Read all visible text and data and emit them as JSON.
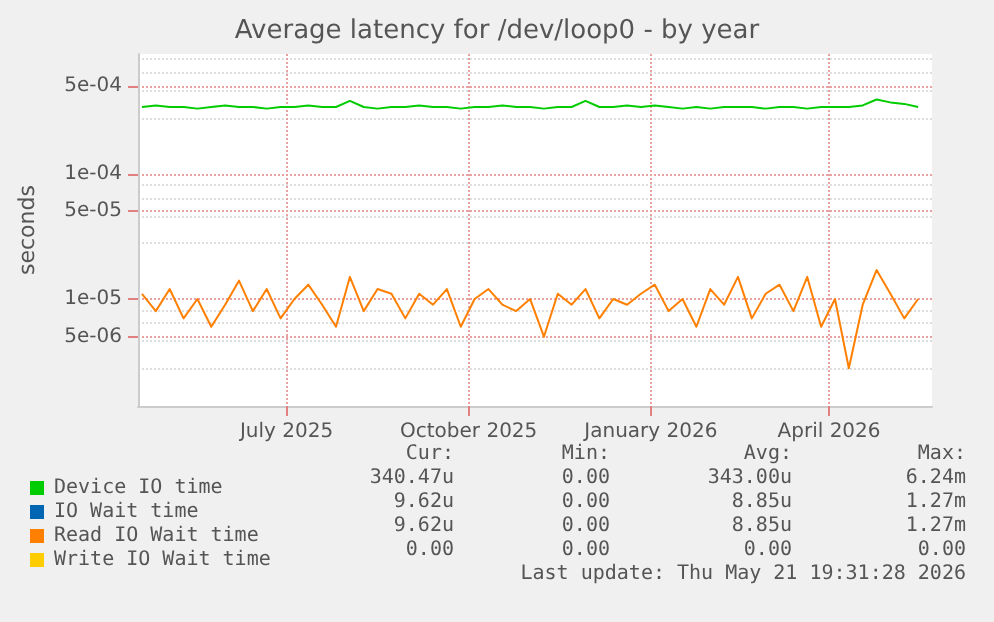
{
  "chart_data": {
    "type": "line",
    "title": "Average latency for /dev/loop0 - by year",
    "ylabel": "seconds",
    "log": "y",
    "grid": true,
    "legend": "bottom left",
    "marker": "none",
    "line_style": "solid",
    "xlim": [
      "2025-04-17",
      "2026-05-23"
    ],
    "xticks": [
      {
        "value": "2025-07-01",
        "label": "July 2025"
      },
      {
        "value": "2025-10-01",
        "label": "October 2025"
      },
      {
        "value": "2026-01-01",
        "label": "January 2026"
      },
      {
        "value": "2026-04-01",
        "label": "April 2026"
      }
    ],
    "ylim": [
      1.4e-06,
      0.0009
    ],
    "yticks": [
      {
        "value": 5e-06,
        "label": "5e-06"
      },
      {
        "value": 1e-05,
        "label": "1e-05"
      },
      {
        "value": 5e-05,
        "label": "5e-05"
      },
      {
        "value": 0.0001,
        "label": "1e-04"
      },
      {
        "value": 0.0005,
        "label": "5e-04"
      }
    ],
    "x": [
      "2025-04-19",
      "2025-04-26",
      "2025-05-03",
      "2025-05-10",
      "2025-05-17",
      "2025-05-24",
      "2025-05-31",
      "2025-06-07",
      "2025-06-14",
      "2025-06-21",
      "2025-06-28",
      "2025-07-05",
      "2025-07-12",
      "2025-07-19",
      "2025-07-26",
      "2025-08-02",
      "2025-08-09",
      "2025-08-16",
      "2025-08-23",
      "2025-08-30",
      "2025-09-06",
      "2025-09-13",
      "2025-09-20",
      "2025-09-27",
      "2025-10-04",
      "2025-10-11",
      "2025-10-18",
      "2025-10-25",
      "2025-11-01",
      "2025-11-08",
      "2025-11-15",
      "2025-11-22",
      "2025-11-29",
      "2025-12-06",
      "2025-12-13",
      "2025-12-20",
      "2025-12-27",
      "2026-01-03",
      "2026-01-10",
      "2026-01-17",
      "2026-01-24",
      "2026-01-31",
      "2026-02-07",
      "2026-02-14",
      "2026-02-21",
      "2026-02-28",
      "2026-03-07",
      "2026-03-14",
      "2026-03-21",
      "2026-03-28",
      "2026-04-04",
      "2026-04-11",
      "2026-04-18",
      "2026-04-25",
      "2026-05-02",
      "2026-05-09",
      "2026-05-16"
    ],
    "series": [
      {
        "name": "Device IO time",
        "color": "#00cc00",
        "values": [
          0.00034,
          0.00035,
          0.00034,
          0.00034,
          0.00033,
          0.00034,
          0.00035,
          0.00034,
          0.00034,
          0.00033,
          0.00034,
          0.00034,
          0.00035,
          0.00034,
          0.00034,
          0.00038,
          0.00034,
          0.00033,
          0.00034,
          0.00034,
          0.00035,
          0.00034,
          0.00034,
          0.00033,
          0.00034,
          0.00034,
          0.00035,
          0.00034,
          0.00034,
          0.00033,
          0.00034,
          0.00034,
          0.00038,
          0.00034,
          0.00034,
          0.00035,
          0.00034,
          0.00035,
          0.00034,
          0.00033,
          0.00034,
          0.00033,
          0.00034,
          0.00034,
          0.00034,
          0.00033,
          0.00034,
          0.00034,
          0.00033,
          0.00034,
          0.00034,
          0.00034,
          0.00035,
          0.00039,
          0.00037,
          0.00036,
          0.00034
        ]
      },
      {
        "name": "IO Wait time",
        "color": "#0066b3",
        "values": [
          null,
          null,
          null,
          null,
          null,
          null,
          null,
          null,
          null,
          null,
          null,
          null,
          null,
          null,
          null,
          null,
          null,
          null,
          null,
          null,
          null,
          null,
          null,
          null,
          null,
          null,
          null,
          null,
          null,
          null,
          null,
          null,
          null,
          null,
          null,
          null,
          null,
          null,
          null,
          null,
          null,
          null,
          null,
          null,
          null,
          null,
          null,
          null,
          null,
          null,
          null,
          null,
          null,
          null,
          null,
          null,
          null
        ]
      },
      {
        "name": "Read IO Wait time",
        "color": "#ff8000",
        "values": [
          1.1e-05,
          8e-06,
          1.2e-05,
          7e-06,
          1e-05,
          6e-06,
          9e-06,
          1.4e-05,
          8e-06,
          1.2e-05,
          7e-06,
          1e-05,
          1.3e-05,
          9e-06,
          6e-06,
          1.5e-05,
          8e-06,
          1.2e-05,
          1.1e-05,
          7e-06,
          1.1e-05,
          9e-06,
          1.2e-05,
          6e-06,
          1e-05,
          1.2e-05,
          9e-06,
          8e-06,
          1e-05,
          5e-06,
          1.1e-05,
          9e-06,
          1.2e-05,
          7e-06,
          1e-05,
          9e-06,
          1.1e-05,
          1.3e-05,
          8e-06,
          1e-05,
          6e-06,
          1.2e-05,
          9e-06,
          1.5e-05,
          7e-06,
          1.1e-05,
          1.3e-05,
          8e-06,
          1.5e-05,
          6e-06,
          1e-05,
          2.8e-06,
          9e-06,
          1.7e-05,
          1.1e-05,
          7e-06,
          1e-05
        ]
      },
      {
        "name": "Write IO Wait time",
        "color": "#ffcc00",
        "values": [
          null,
          null,
          null,
          null,
          null,
          null,
          null,
          null,
          null,
          null,
          null,
          null,
          null,
          null,
          null,
          null,
          null,
          null,
          null,
          null,
          null,
          null,
          null,
          null,
          null,
          null,
          null,
          null,
          null,
          null,
          null,
          null,
          null,
          null,
          null,
          null,
          null,
          null,
          null,
          null,
          null,
          null,
          null,
          null,
          null,
          null,
          null,
          null,
          null,
          null,
          null,
          null,
          null,
          null,
          null,
          null,
          null
        ]
      }
    ],
    "annotations": [
      "Cur:",
      "Min:",
      "Avg:",
      "Max:",
      "340.47u",
      "0.00",
      "343.00u",
      "6.24m",
      "9.62u",
      "0.00",
      "8.85u",
      "1.27m",
      "9.62u",
      "0.00",
      "8.85u",
      "1.27m",
      "0.00",
      "0.00",
      "0.00",
      "0.00",
      "Last update: Thu May 21 19:31:28 2026"
    ]
  }
}
